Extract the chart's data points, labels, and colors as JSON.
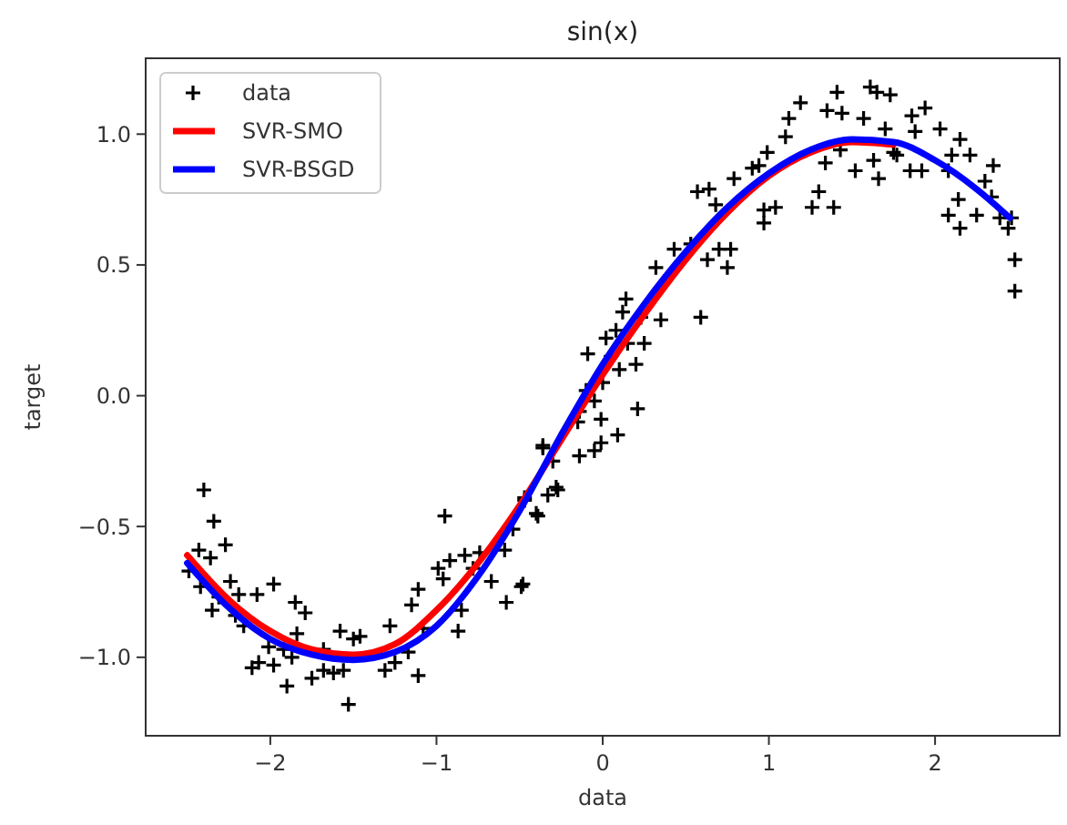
{
  "chart_data": {
    "type": "scatter",
    "title": "sin(x)",
    "xlabel": "data",
    "ylabel": "target",
    "xlim": [
      -2.75,
      2.75
    ],
    "ylim": [
      -1.3,
      1.29
    ],
    "xticks": [
      {
        "value": -2,
        "label": "−2"
      },
      {
        "value": -1,
        "label": "−1"
      },
      0,
      1,
      2
    ],
    "yticks": [
      {
        "value": -1,
        "label": "−1.0"
      },
      {
        "value": -0.5,
        "label": "−0.5"
      },
      {
        "value": 0,
        "label": "0.0"
      },
      {
        "value": 0.5,
        "label": "0.5"
      },
      {
        "value": 1,
        "label": "1.0"
      }
    ],
    "grid": false,
    "legend": "top left",
    "series": [
      {
        "name": "data",
        "marker": "cross",
        "color": "#000000",
        "x": [
          -2.4,
          -2.34,
          -2.27,
          -2.49,
          -2.43,
          -2.36,
          -2.42,
          -2.35,
          -2.24,
          -2.19,
          -2.31,
          -2.21,
          -2.16,
          -2.08,
          -1.98,
          -2.11,
          -2.07,
          -1.98,
          -2.01,
          -1.9,
          -1.92,
          -1.87,
          -1.85,
          -1.79,
          -1.84,
          -1.75,
          -1.68,
          -1.68,
          -1.62,
          -1.58,
          -1.56,
          -1.53,
          -1.5,
          -1.46,
          -1.31,
          -1.28,
          -1.25,
          -1.17,
          -1.11,
          -1.15,
          -1.11,
          -1.08,
          -0.99,
          -0.95,
          -0.96,
          -0.92,
          -0.87,
          -0.85,
          -0.83,
          -0.78,
          -0.74,
          -0.67,
          -0.59,
          -0.58,
          -0.49,
          -0.54,
          -0.47,
          -0.4,
          -0.36,
          -0.48,
          -0.47,
          -0.39,
          -0.36,
          -0.33,
          -0.3,
          -0.28,
          -0.27,
          -0.14,
          -0.14,
          -0.05,
          -0.01,
          -0.01,
          0.09,
          0.21,
          -0.1,
          0.0,
          0.05,
          0.1,
          -0.05,
          0.02,
          0.15,
          0.2,
          0.08,
          -0.15,
          0.12,
          0.25,
          -0.09,
          0.14,
          0.23,
          0.35,
          0.59,
          0.32,
          0.43,
          0.53,
          0.63,
          0.7,
          0.75,
          0.77,
          0.57,
          0.64,
          0.68,
          0.79,
          0.9,
          0.94,
          0.97,
          0.97,
          1.04,
          0.99,
          1.1,
          1.12,
          1.19,
          1.26,
          1.3,
          1.39,
          1.34,
          1.35,
          1.41,
          1.44,
          1.43,
          1.52,
          1.57,
          1.61,
          1.65,
          1.73,
          1.63,
          1.66,
          1.7,
          1.75,
          1.77,
          1.85,
          1.92,
          1.86,
          1.94,
          1.88,
          2.03,
          2.08,
          2.1,
          2.15,
          2.21,
          2.08,
          2.15,
          2.14,
          2.25,
          2.3,
          2.35,
          2.34,
          2.39,
          2.46,
          2.44,
          2.48,
          2.48
        ],
        "values": [
          -0.36,
          -0.48,
          -0.57,
          -0.67,
          -0.59,
          -0.62,
          -0.73,
          -0.82,
          -0.71,
          -0.76,
          -0.77,
          -0.84,
          -0.88,
          -0.76,
          -0.72,
          -1.04,
          -1.02,
          -1.03,
          -0.96,
          -1.11,
          -0.97,
          -1.0,
          -0.79,
          -0.83,
          -0.91,
          -1.08,
          -0.97,
          -1.05,
          -1.06,
          -0.9,
          -1.05,
          -1.18,
          -0.93,
          -0.92,
          -1.05,
          -0.88,
          -1.02,
          -0.98,
          -1.07,
          -0.8,
          -0.74,
          -0.89,
          -0.66,
          -0.46,
          -0.7,
          -0.63,
          -0.9,
          -0.82,
          -0.61,
          -0.66,
          -0.6,
          -0.71,
          -0.59,
          -0.79,
          -0.73,
          -0.51,
          -0.4,
          -0.45,
          -0.19,
          -0.72,
          -0.39,
          -0.46,
          -0.2,
          -0.38,
          -0.25,
          -0.35,
          -0.36,
          -0.06,
          -0.23,
          -0.21,
          -0.18,
          -0.09,
          -0.15,
          -0.05,
          0.02,
          0.05,
          0.15,
          0.1,
          -0.02,
          0.22,
          0.2,
          0.12,
          0.25,
          -0.1,
          0.32,
          0.2,
          0.16,
          0.37,
          0.3,
          0.29,
          0.3,
          0.49,
          0.56,
          0.58,
          0.52,
          0.56,
          0.49,
          0.56,
          0.78,
          0.79,
          0.73,
          0.83,
          0.87,
          0.88,
          0.71,
          0.66,
          0.72,
          0.93,
          0.99,
          1.06,
          1.12,
          0.72,
          0.78,
          0.72,
          0.89,
          1.09,
          1.16,
          1.08,
          0.94,
          0.86,
          1.06,
          1.18,
          1.16,
          1.15,
          0.9,
          0.83,
          1.02,
          0.93,
          0.92,
          0.86,
          0.86,
          1.07,
          1.1,
          1.01,
          1.02,
          0.86,
          0.92,
          0.98,
          0.92,
          0.69,
          0.64,
          0.75,
          0.69,
          0.82,
          0.88,
          0.76,
          0.68,
          0.68,
          0.64,
          0.52,
          0.4
        ]
      },
      {
        "name": "SVR-SMO",
        "type": "line",
        "color": "#ff0000",
        "x": [
          -2.5,
          -2.25,
          -2.0,
          -1.75,
          -1.5,
          -1.25,
          -1.0,
          -0.75,
          -0.5,
          -0.25,
          0,
          0.25,
          0.5,
          0.75,
          1.0,
          1.25,
          1.5,
          1.75
        ],
        "values": [
          -0.61,
          -0.78,
          -0.9,
          -0.97,
          -0.99,
          -0.95,
          -0.82,
          -0.64,
          -0.42,
          -0.17,
          0.08,
          0.31,
          0.52,
          0.7,
          0.84,
          0.93,
          0.97,
          0.96
        ]
      },
      {
        "name": "SVR-BSGD",
        "type": "line",
        "color": "#0000ff",
        "x": [
          -2.5,
          -2.25,
          -2.0,
          -1.75,
          -1.5,
          -1.25,
          -1.0,
          -0.75,
          -0.5,
          -0.25,
          0,
          0.25,
          0.5,
          0.75,
          1.0,
          1.25,
          1.5,
          1.75,
          2.0,
          2.25,
          2.45
        ],
        "values": [
          -0.64,
          -0.81,
          -0.93,
          -0.99,
          -1.01,
          -0.98,
          -0.88,
          -0.69,
          -0.44,
          -0.15,
          0.12,
          0.35,
          0.55,
          0.72,
          0.85,
          0.94,
          0.98,
          0.97,
          0.9,
          0.79,
          0.68
        ]
      }
    ]
  }
}
